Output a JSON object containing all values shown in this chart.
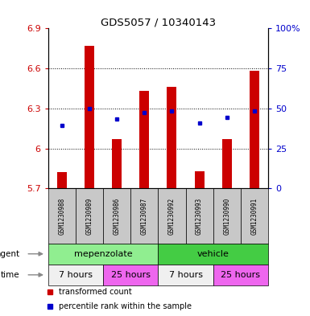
{
  "title": "GDS5057 / 10340143",
  "samples": [
    "GSM1230988",
    "GSM1230989",
    "GSM1230986",
    "GSM1230987",
    "GSM1230992",
    "GSM1230993",
    "GSM1230990",
    "GSM1230991"
  ],
  "bar_bottoms": [
    5.7,
    5.7,
    5.7,
    5.7,
    5.7,
    5.7,
    5.7,
    5.7
  ],
  "bar_tops": [
    5.82,
    6.77,
    6.07,
    6.43,
    6.46,
    5.83,
    6.07,
    6.58
  ],
  "blue_dots_y": [
    6.17,
    6.3,
    6.22,
    6.27,
    6.28,
    6.19,
    6.23,
    6.28
  ],
  "ylim": [
    5.7,
    6.9
  ],
  "yticks_left": [
    5.7,
    6.0,
    6.3,
    6.6,
    6.9
  ],
  "ytick_labels_left": [
    "5.7",
    "6",
    "6.3",
    "6.6",
    "6.9"
  ],
  "yticks_right_pct": [
    0,
    25,
    50,
    75,
    100
  ],
  "ytick_labels_right": [
    "0",
    "25",
    "50",
    "75",
    "100%"
  ],
  "bar_color": "#cc0000",
  "dot_color": "#0000cc",
  "agent_groups": [
    {
      "label": "mepenzolate",
      "start": 0,
      "end": 4,
      "color": "#90ee90"
    },
    {
      "label": "vehicle",
      "start": 4,
      "end": 8,
      "color": "#44cc44"
    }
  ],
  "time_groups": [
    {
      "label": "7 hours",
      "start": 0,
      "end": 2,
      "color": "#f0f0f0"
    },
    {
      "label": "25 hours",
      "start": 2,
      "end": 4,
      "color": "#ee66ee"
    },
    {
      "label": "7 hours",
      "start": 4,
      "end": 6,
      "color": "#f0f0f0"
    },
    {
      "label": "25 hours",
      "start": 6,
      "end": 8,
      "color": "#ee66ee"
    }
  ],
  "legend_items": [
    {
      "label": "transformed count",
      "color": "#cc0000"
    },
    {
      "label": "percentile rank within the sample",
      "color": "#0000cc"
    }
  ],
  "tick_color_left": "#cc0000",
  "tick_color_right": "#0000cc",
  "bar_width": 0.35,
  "sample_bg": "#c8c8c8"
}
